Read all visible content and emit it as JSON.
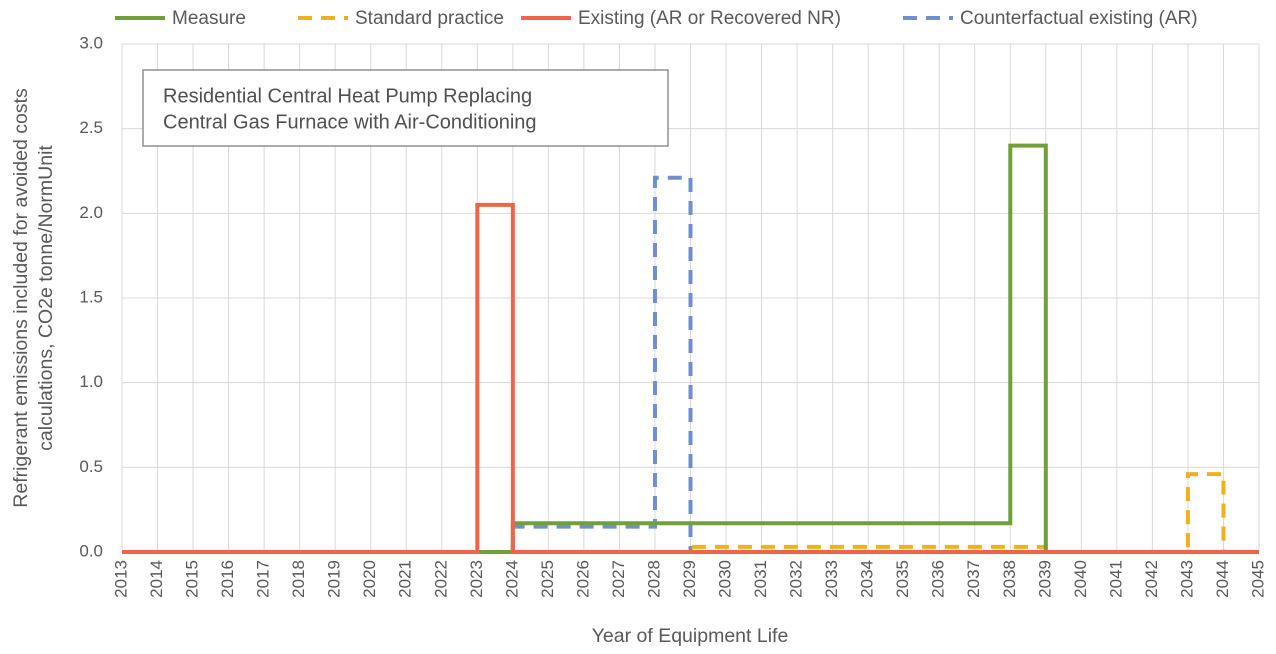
{
  "chart_data": {
    "type": "line",
    "annotation": [
      "Residential Central Heat Pump Replacing",
      "Central Gas Furnace with Air-Conditioning"
    ],
    "x_label": "Year of Equipment Life",
    "y_label": [
      "Refrigerant emissions included for avoided costs",
      "calculations, CO2e tonne/NormUnit"
    ],
    "xlim": [
      2013,
      2045
    ],
    "xticks": [
      2013,
      2014,
      2015,
      2016,
      2017,
      2018,
      2019,
      2020,
      2021,
      2022,
      2023,
      2024,
      2025,
      2026,
      2027,
      2028,
      2029,
      2030,
      2031,
      2032,
      2033,
      2034,
      2035,
      2036,
      2037,
      2038,
      2039,
      2040,
      2041,
      2042,
      2043,
      2044,
      2045
    ],
    "ylim": [
      0,
      3
    ],
    "yticks": [
      {
        "value": 0,
        "label": "0.0"
      },
      {
        "value": 0.5,
        "label": "0.5"
      },
      {
        "value": 1,
        "label": "1.0"
      },
      {
        "value": 1.5,
        "label": "1.5"
      },
      {
        "value": 2,
        "label": "2.0"
      },
      {
        "value": 2.5,
        "label": "2.5"
      },
      {
        "value": 3,
        "label": "3.0"
      }
    ],
    "grid": true,
    "legend": "top",
    "series": [
      {
        "name": "Measure",
        "color": "#70a03a",
        "dashed": false,
        "x": [
          2013,
          2024,
          2024,
          2038,
          2038,
          2039,
          2039,
          2045
        ],
        "values": [
          0,
          0,
          0.17,
          0.17,
          2.4,
          2.4,
          0,
          0
        ]
      },
      {
        "name": "Standard practice",
        "color": "#f0b020",
        "dashed": true,
        "x": [
          2013,
          2029,
          2029,
          2039,
          2039,
          2043,
          2043,
          2044,
          2044,
          2045
        ],
        "values": [
          0,
          0,
          0.03,
          0.03,
          0,
          0,
          0.46,
          0.46,
          0,
          0
        ]
      },
      {
        "name": "Existing (AR or Recovered NR)",
        "color": "#f0654a",
        "dashed": false,
        "x": [
          2013,
          2023,
          2023,
          2024,
          2024,
          2045
        ],
        "values": [
          0,
          0,
          2.05,
          2.05,
          0,
          0
        ]
      },
      {
        "name": "Counterfactual existing (AR)",
        "color": "#6f8fce",
        "dashed": true,
        "x": [
          2013,
          2024,
          2024,
          2028,
          2028,
          2029,
          2029,
          2045
        ],
        "values": [
          0,
          0,
          0.15,
          0.15,
          2.21,
          2.21,
          0,
          0
        ]
      }
    ]
  }
}
